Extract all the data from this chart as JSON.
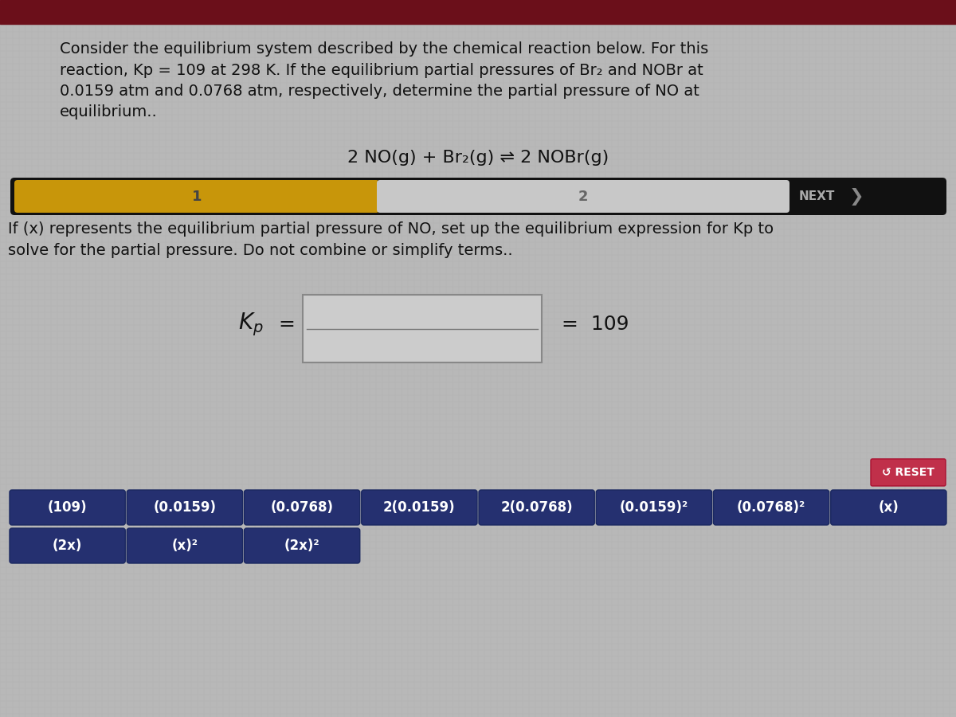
{
  "bg_color": "#b8b8b8",
  "top_bar_color": "#6b0f1a",
  "paragraph_text": "Consider the equilibrium system described by the chemical reaction below. For this\nreaction, Kp = 109 at 298 K. If the equilibrium partial pressures of Br₂ and NOBr at\n0.0159 atm and 0.0768 atm, respectively, determine the partial pressure of NO at\nequilibrium..",
  "reaction_text": "2 NO(g) + Br₂(g) ⇌ 2 NOBr(g)",
  "progress_bar_bg": "#111111",
  "progress_step1_color": "#c8960a",
  "progress_step2_color": "#c8c8c8",
  "progress_text1": "1",
  "progress_text2": "2",
  "next_text": "NEXT",
  "instruction_text": "If (x) represents the equilibrium partial pressure of NO, set up the equilibrium expression for Kp to\nsolve for the partial pressure. Do not combine or simplify terms..",
  "kp_value": "109",
  "reset_btn_color": "#c0304a",
  "reset_text": "↺ RESET",
  "button_bg": "#253070",
  "button_text_color": "#ffffff",
  "buttons_row1": [
    "(109)",
    "(0.0159)",
    "(0.0768)",
    "2(0.0159)",
    "2(0.0768)",
    "(0.0159)²",
    "(0.0768)²",
    "(x)"
  ],
  "buttons_row2": [
    "(2x)",
    "(x)²",
    "(2x)²"
  ],
  "font_size_paragraph": 14,
  "font_size_reaction": 16,
  "font_size_instruction": 14,
  "font_size_kp": 18,
  "font_size_buttons": 12
}
